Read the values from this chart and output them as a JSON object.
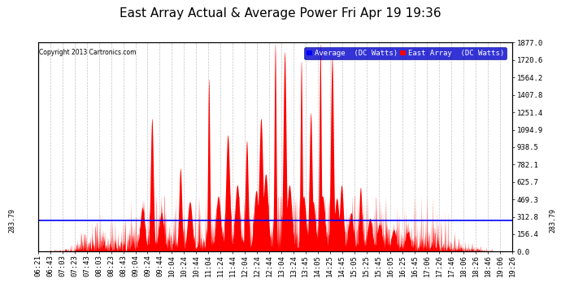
{
  "title": "East Array Actual & Average Power Fri Apr 19 19:36",
  "copyright": "Copyright 2013 Cartronics.com",
  "ylabel_right_ticks": [
    0.0,
    156.4,
    312.8,
    469.3,
    625.7,
    782.1,
    938.5,
    1094.9,
    1251.4,
    1407.8,
    1564.2,
    1720.6,
    1877.0
  ],
  "average_line_y": 283.79,
  "ymax": 1877.0,
  "ymin": 0.0,
  "legend_avg_label": "Average  (DC Watts)",
  "legend_east_label": "East Array  (DC Watts)",
  "legend_avg_color": "#0000ff",
  "legend_east_color": "#ff0000",
  "bg_color": "#ffffff",
  "grid_color": "#aaaaaa",
  "title_fontsize": 11,
  "axis_fontsize": 6.5,
  "x_tick_labels": [
    "06:21",
    "06:43",
    "07:03",
    "07:23",
    "07:43",
    "08:03",
    "08:23",
    "08:43",
    "09:04",
    "09:24",
    "09:44",
    "10:04",
    "10:24",
    "10:44",
    "11:04",
    "11:24",
    "11:44",
    "12:04",
    "12:24",
    "12:44",
    "13:04",
    "13:24",
    "13:45",
    "14:05",
    "14:25",
    "14:45",
    "15:05",
    "15:25",
    "15:45",
    "16:05",
    "16:25",
    "16:45",
    "17:06",
    "17:26",
    "17:46",
    "18:06",
    "18:26",
    "18:46",
    "19:06",
    "19:26"
  ]
}
